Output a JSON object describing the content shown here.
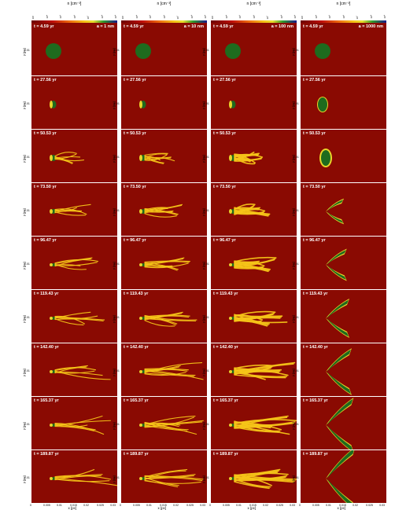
{
  "colorbars": [
    {
      "title": "n [cm⁻³]",
      "ticks": [
        "10³",
        "10⁴",
        "10⁵",
        "10⁶",
        "10⁷",
        "10⁸",
        "10⁹"
      ]
    },
    {
      "title": "n [cm⁻³]",
      "ticks": [
        "10³",
        "10⁴",
        "10⁵",
        "10⁶",
        "10⁷",
        "10⁸",
        "10⁹"
      ]
    },
    {
      "title": "n [cm⁻³]",
      "ticks": [
        "10³",
        "10⁴",
        "10⁵",
        "10⁶",
        "10⁷",
        "10⁸",
        "10⁹"
      ]
    },
    {
      "title": "n [cm⁻³]",
      "ticks": [
        "10³",
        "10⁴",
        "10⁵",
        "10⁶",
        "10⁷",
        "10⁸",
        "10⁹"
      ]
    }
  ],
  "columns": [
    {
      "a_label": "a = 1 nm"
    },
    {
      "a_label": "a = 10 nm"
    },
    {
      "a_label": "a = 100 nm"
    },
    {
      "a_label": "a = 1000 nm"
    }
  ],
  "times": [
    "4.59 yr",
    "27.56 yr",
    "50.53 yr",
    "73.50 yr",
    "96.47 yr",
    "119.43 yr",
    "142.40 yr",
    "165.37 yr",
    "189.87 yr"
  ],
  "t_prefix": "t =",
  "y_label": "y [pc]",
  "y_tick": "0.01",
  "x_label": "x [pc]",
  "x_ticks": [
    "0",
    "0.005",
    "0.01",
    "0.015",
    "0.02",
    "0.025",
    "0.03"
  ],
  "colors": {
    "background": "#8a0a02",
    "clump": "#1e6b1e",
    "gas": "#f5c518",
    "rim": "#e8d62a"
  }
}
